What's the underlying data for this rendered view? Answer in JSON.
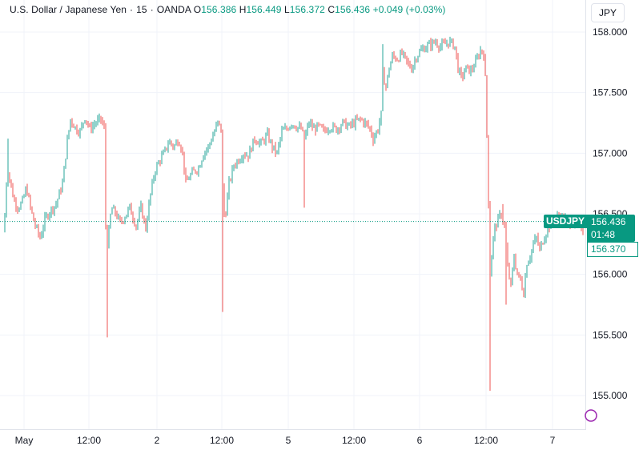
{
  "legend": {
    "symbol_name": "U.S. Dollar / Japanese Yen",
    "interval": "15",
    "exchange": "OANDA",
    "open_label": "O",
    "open": "156.386",
    "high_label": "H",
    "high": "156.449",
    "low_label": "L",
    "low": "156.372",
    "close_label": "C",
    "close": "156.436",
    "change": "+0.049 (+0.03%)"
  },
  "currency_button": "JPY",
  "price_tag": {
    "symbol": "USDJPY",
    "price": "156.436",
    "countdown": "01:48",
    "secondary": "156.370"
  },
  "colors": {
    "up": "#26a69a",
    "down": "#ef5350",
    "accent": "#089981",
    "grid": "#f0f3fa"
  },
  "chart_data": {
    "type": "candlestick",
    "ylim": [
      154.75,
      158.15
    ],
    "xlim": [
      0,
      730
    ],
    "grid": true,
    "y_ticks": [
      "158.000",
      "157.500",
      "157.000",
      "156.500",
      "156.000",
      "155.500",
      "155.000"
    ],
    "x_ticks": [
      "May",
      "12:00",
      "2",
      "12:00",
      "5",
      "12:00",
      "6",
      "12:00",
      "7"
    ],
    "x_tick_positions": [
      30,
      111,
      196,
      277,
      360,
      442,
      524,
      607,
      690
    ],
    "last_price": 156.436,
    "anchors": [
      [
        5,
        156.35
      ],
      [
        9,
        156.9
      ],
      [
        13,
        156.75
      ],
      [
        18,
        156.6
      ],
      [
        23,
        156.55
      ],
      [
        28,
        156.6
      ],
      [
        33,
        156.72
      ],
      [
        38,
        156.55
      ],
      [
        43,
        156.42
      ],
      [
        50,
        156.3
      ],
      [
        56,
        156.45
      ],
      [
        62,
        156.52
      ],
      [
        70,
        156.58
      ],
      [
        78,
        156.75
      ],
      [
        84,
        157.1
      ],
      [
        88,
        157.28
      ],
      [
        95,
        157.2
      ],
      [
        100,
        157.18
      ],
      [
        106,
        157.3
      ],
      [
        112,
        157.2
      ],
      [
        119,
        157.25
      ],
      [
        126,
        157.28
      ],
      [
        130,
        157.2
      ],
      [
        131,
        156.6
      ],
      [
        133,
        156.2
      ],
      [
        136,
        156.35
      ],
      [
        139,
        156.55
      ],
      [
        145,
        156.5
      ],
      [
        150,
        156.42
      ],
      [
        156,
        156.48
      ],
      [
        162,
        156.55
      ],
      [
        170,
        156.4
      ],
      [
        176,
        156.55
      ],
      [
        182,
        156.38
      ],
      [
        187,
        156.62
      ],
      [
        193,
        156.85
      ],
      [
        200,
        156.95
      ],
      [
        205,
        157.0
      ],
      [
        211,
        157.1
      ],
      [
        217,
        157.05
      ],
      [
        223,
        157.12
      ],
      [
        228,
        157.0
      ],
      [
        232,
        156.75
      ],
      [
        236,
        156.8
      ],
      [
        242,
        156.85
      ],
      [
        248,
        156.88
      ],
      [
        254,
        157.0
      ],
      [
        260,
        157.05
      ],
      [
        266,
        157.15
      ],
      [
        272,
        157.25
      ],
      [
        276,
        157.2
      ],
      [
        279,
        156.48
      ],
      [
        282,
        156.52
      ],
      [
        286,
        156.75
      ],
      [
        292,
        156.9
      ],
      [
        298,
        156.95
      ],
      [
        304,
        157.0
      ],
      [
        310,
        156.98
      ],
      [
        318,
        157.12
      ],
      [
        326,
        157.08
      ],
      [
        334,
        157.15
      ],
      [
        340,
        157.05
      ],
      [
        346,
        157.0
      ],
      [
        352,
        157.18
      ],
      [
        358,
        157.2
      ],
      [
        364,
        157.25
      ],
      [
        370,
        157.22
      ],
      [
        376,
        157.2
      ],
      [
        380,
        157.12
      ],
      [
        386,
        157.25
      ],
      [
        392,
        157.2
      ],
      [
        398,
        157.22
      ],
      [
        404,
        157.18
      ],
      [
        412,
        157.22
      ],
      [
        420,
        157.2
      ],
      [
        428,
        157.25
      ],
      [
        436,
        157.22
      ],
      [
        444,
        157.26
      ],
      [
        450,
        157.28
      ],
      [
        456,
        157.25
      ],
      [
        462,
        157.2
      ],
      [
        466,
        157.12
      ],
      [
        472,
        157.2
      ],
      [
        476,
        157.32
      ],
      [
        478,
        157.65
      ],
      [
        482,
        157.55
      ],
      [
        486,
        157.7
      ],
      [
        490,
        157.8
      ],
      [
        496,
        157.78
      ],
      [
        502,
        157.82
      ],
      [
        508,
        157.75
      ],
      [
        514,
        157.7
      ],
      [
        520,
        157.8
      ],
      [
        526,
        157.85
      ],
      [
        532,
        157.88
      ],
      [
        538,
        157.9
      ],
      [
        544,
        157.92
      ],
      [
        550,
        157.88
      ],
      [
        556,
        157.9
      ],
      [
        562,
        157.92
      ],
      [
        568,
        157.88
      ],
      [
        572,
        157.7
      ],
      [
        576,
        157.62
      ],
      [
        582,
        157.7
      ],
      [
        588,
        157.68
      ],
      [
        594,
        157.75
      ],
      [
        600,
        157.85
      ],
      [
        605,
        157.82
      ],
      [
        607,
        157.4
      ],
      [
        609,
        156.9
      ],
      [
        612,
        156.0
      ],
      [
        615,
        156.25
      ],
      [
        618,
        156.38
      ],
      [
        622,
        156.45
      ],
      [
        626,
        156.5
      ],
      [
        630,
        156.4
      ],
      [
        634,
        156.05
      ],
      [
        638,
        155.9
      ],
      [
        642,
        156.15
      ],
      [
        646,
        156.0
      ],
      [
        650,
        155.95
      ],
      [
        654,
        155.85
      ],
      [
        658,
        156.1
      ],
      [
        662,
        156.15
      ],
      [
        666,
        156.25
      ],
      [
        670,
        156.3
      ],
      [
        674,
        156.2
      ],
      [
        678,
        156.28
      ],
      [
        682,
        156.35
      ],
      [
        686,
        156.4
      ],
      [
        692,
        156.45
      ],
      [
        698,
        156.48
      ],
      [
        704,
        156.46
      ],
      [
        710,
        156.44
      ],
      [
        716,
        156.42
      ],
      [
        722,
        156.4
      ],
      [
        728,
        156.38
      ]
    ],
    "spikes": [
      {
        "x": 134,
        "low": 155.48
      },
      {
        "x": 278,
        "low": 155.69
      },
      {
        "x": 380,
        "low": 156.55
      },
      {
        "x": 612,
        "low": 155.04
      },
      {
        "x": 632,
        "low": 155.75
      },
      {
        "x": 10,
        "high": 157.12
      },
      {
        "x": 478,
        "high": 157.9
      },
      {
        "x": 628,
        "high": 156.58
      }
    ]
  }
}
